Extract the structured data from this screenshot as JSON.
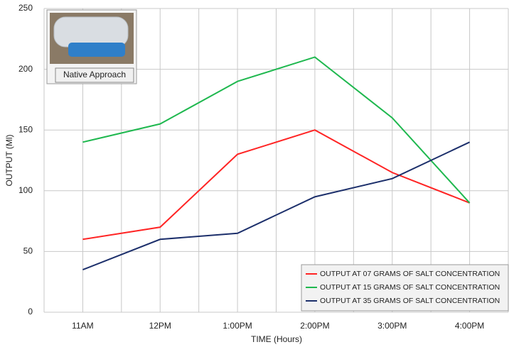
{
  "chart_data": {
    "type": "line",
    "x_label": "TIME (Hours)",
    "y_label": "OUTPUT (Ml)",
    "categories": [
      "11AM",
      "12PM",
      "1:00PM",
      "2:00PM",
      "3:00PM",
      "4:00PM"
    ],
    "series": [
      {
        "name": "OUTPUT AT 07 GRAMS OF SALT CONCENTRATION",
        "color": "#ff2424",
        "values": [
          60,
          70,
          130,
          150,
          115,
          90
        ]
      },
      {
        "name": "OUTPUT AT 15 GRAMS OF SALT CONCENTRATION",
        "color": "#1fb84f",
        "values": [
          140,
          155,
          190,
          210,
          160,
          90
        ]
      },
      {
        "name": "OUTPUT AT 35 GRAMS OF SALT CONCENTRATION",
        "color": "#1c2f6b",
        "values": [
          35,
          60,
          65,
          95,
          110,
          140
        ]
      }
    ],
    "ylim": [
      0,
      250
    ],
    "yticks": [
      0,
      50,
      100,
      150,
      200,
      250
    ],
    "grid": true,
    "legend": "lower right",
    "inset_label": "Native Approach"
  }
}
